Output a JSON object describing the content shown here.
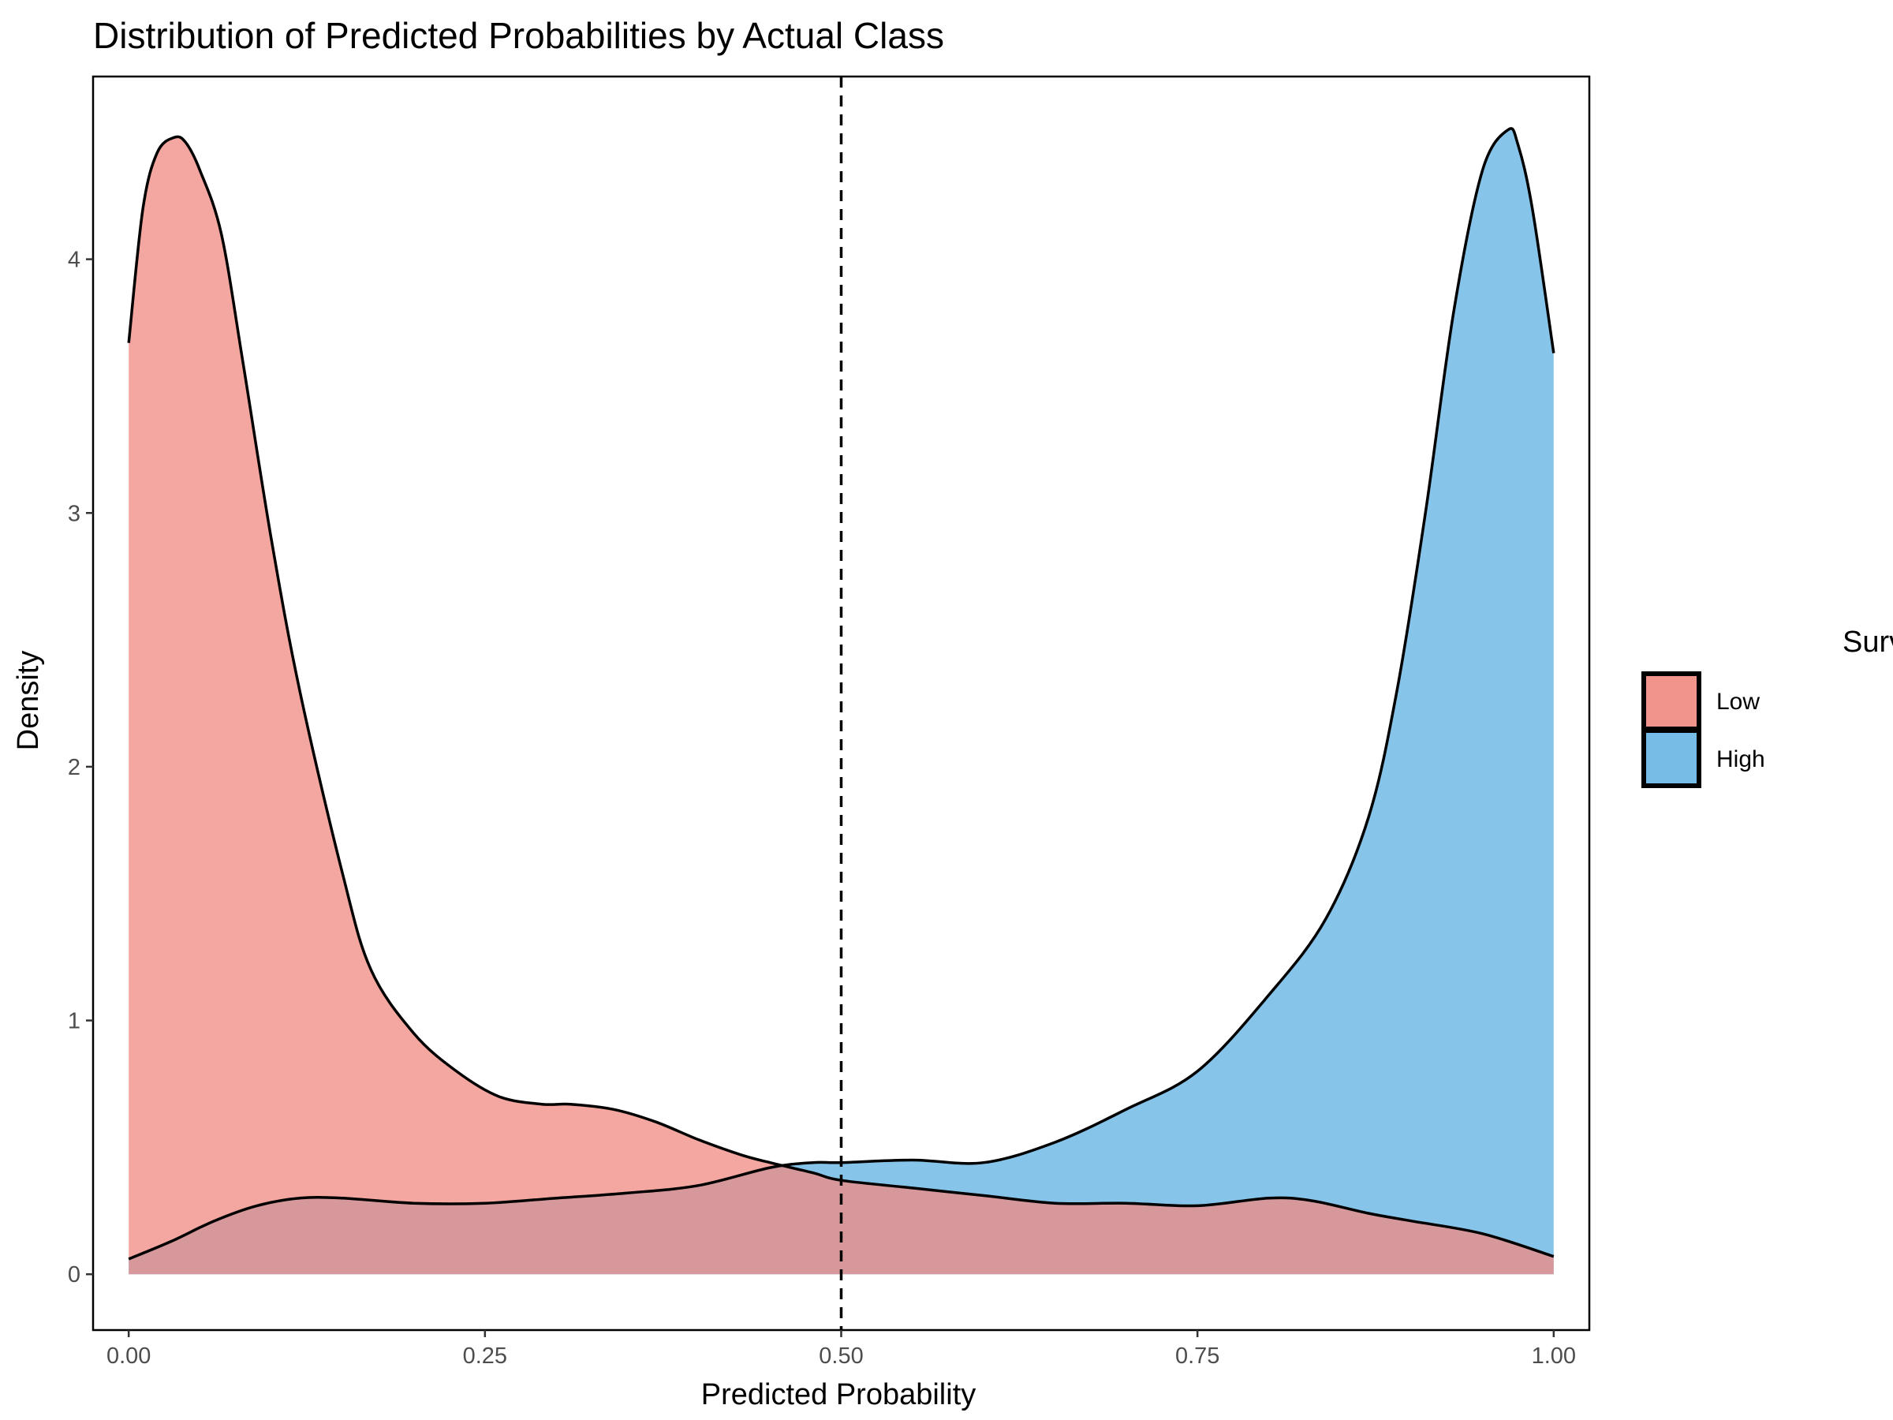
{
  "chart_data": {
    "type": "area",
    "title": "Distribution of Predicted Probabilities by Actual Class",
    "xlabel": "Predicted Probability",
    "ylabel": "Density",
    "xlim": [
      -0.025,
      1.025
    ],
    "ylim": [
      -0.22,
      4.72
    ],
    "x_ticks": [
      0,
      0.25,
      0.5,
      0.75,
      1
    ],
    "x_tick_labels": [
      "0.00",
      "0.25",
      "0.50",
      "0.75",
      "1.00"
    ],
    "y_ticks": [
      0,
      1,
      2,
      3,
      4
    ],
    "y_tick_labels": [
      "0",
      "1",
      "2",
      "3",
      "4"
    ],
    "threshold": 0.5,
    "legend": {
      "title": "Survival Class",
      "position": "right",
      "entries": [
        {
          "label": "Low",
          "color": "#f08a80"
        },
        {
          "label": "High",
          "color": "#5fb0e2"
        }
      ]
    },
    "fill_opacity": 0.75,
    "series": [
      {
        "name": "Low",
        "color": "#f08a80",
        "x": [
          0,
          0.01,
          0.02,
          0.032,
          0.04,
          0.05,
          0.065,
          0.08,
          0.1,
          0.12,
          0.15,
          0.17,
          0.2,
          0.23,
          0.26,
          0.29,
          0.31,
          0.34,
          0.37,
          0.4,
          0.43,
          0.45,
          0.48,
          0.5,
          0.55,
          0.6,
          0.65,
          0.7,
          0.75,
          0.8,
          0.83,
          0.87,
          0.9,
          0.95,
          1
        ],
        "y": [
          3.67,
          4.2,
          4.42,
          4.48,
          4.46,
          4.35,
          4.1,
          3.6,
          2.9,
          2.3,
          1.58,
          1.2,
          0.95,
          0.8,
          0.7,
          0.67,
          0.67,
          0.65,
          0.6,
          0.53,
          0.47,
          0.44,
          0.4,
          0.37,
          0.34,
          0.31,
          0.28,
          0.28,
          0.27,
          0.3,
          0.29,
          0.24,
          0.21,
          0.16,
          0.07
        ]
      },
      {
        "name": "High",
        "color": "#5fb0e2",
        "x": [
          0,
          0.03,
          0.06,
          0.09,
          0.12,
          0.15,
          0.2,
          0.25,
          0.3,
          0.35,
          0.4,
          0.45,
          0.48,
          0.5,
          0.55,
          0.6,
          0.65,
          0.7,
          0.75,
          0.8,
          0.84,
          0.87,
          0.89,
          0.91,
          0.93,
          0.95,
          0.968,
          0.975,
          0.985,
          1
        ],
        "y": [
          0.06,
          0.13,
          0.21,
          0.27,
          0.3,
          0.3,
          0.28,
          0.28,
          0.3,
          0.32,
          0.35,
          0.42,
          0.44,
          0.44,
          0.45,
          0.44,
          0.52,
          0.65,
          0.8,
          1.1,
          1.4,
          1.8,
          2.3,
          3.0,
          3.8,
          4.35,
          4.51,
          4.45,
          4.2,
          3.63
        ]
      }
    ]
  }
}
